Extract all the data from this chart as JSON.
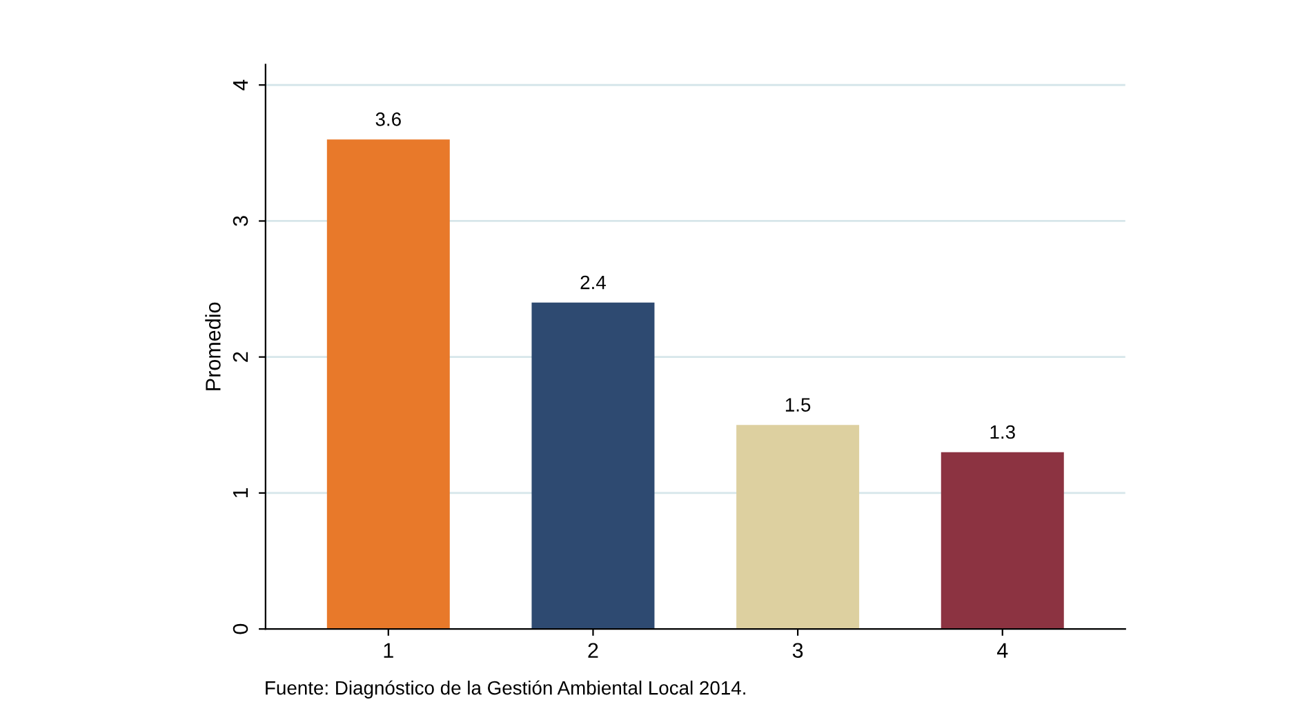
{
  "chart_data": {
    "type": "bar",
    "ylabel": "Promedio",
    "categories": [
      "1",
      "2",
      "3",
      "4"
    ],
    "values": [
      3.6,
      2.4,
      1.5,
      1.3
    ],
    "colors": [
      "#e8792a",
      "#2e4a71",
      "#ddd0a0",
      "#8c3341"
    ],
    "ylim": [
      0,
      4.15
    ],
    "yticks": [
      0,
      1,
      2,
      3,
      4
    ],
    "grid": "y",
    "data_labels": true,
    "annotations": [
      "Fuente: Diagnóstico de la Gestión Ambiental Local 2014."
    ]
  }
}
